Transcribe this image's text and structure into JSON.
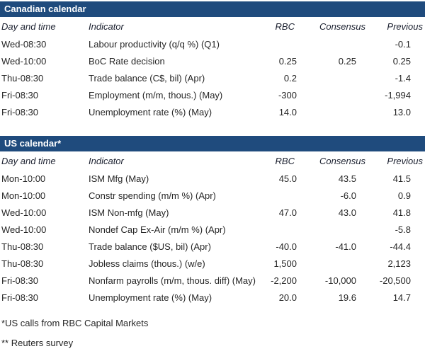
{
  "colors": {
    "section_bar_bg": "#1f4b7d",
    "section_bar_text": "#ffffff",
    "body_text": "#262626"
  },
  "columns": {
    "day_time": "Day and time",
    "indicator": "Indicator",
    "rbc": "RBC",
    "consensus": "Consensus",
    "previous": "Previous"
  },
  "sections": [
    {
      "title": "Canadian calendar",
      "rows": [
        {
          "time": "Wed-08:30",
          "indicator": "Labour productivity (q/q %) (Q1)",
          "rbc": "",
          "consensus": "",
          "previous": "-0.1"
        },
        {
          "time": "Wed-10:00",
          "indicator": "BoC Rate decision",
          "rbc": "0.25",
          "consensus": "0.25",
          "previous": "0.25"
        },
        {
          "time": "Thu-08:30",
          "indicator": "Trade balance (C$, bil) (Apr)",
          "rbc": "0.2",
          "consensus": "",
          "previous": "-1.4"
        },
        {
          "time": "Fri-08:30",
          "indicator": "Employment (m/m, thous.) (May)",
          "rbc": "-300",
          "consensus": "",
          "previous": "-1,994"
        },
        {
          "time": "Fri-08:30",
          "indicator": "Unemployment rate (%) (May)",
          "rbc": "14.0",
          "consensus": "",
          "previous": "13.0"
        }
      ]
    },
    {
      "title": "US calendar*",
      "rows": [
        {
          "time": "Mon-10:00",
          "indicator": "ISM Mfg (May)",
          "rbc": "45.0",
          "consensus": "43.5",
          "previous": "41.5"
        },
        {
          "time": "Mon-10:00",
          "indicator": "Constr spending (m/m %) (Apr)",
          "rbc": "",
          "consensus": "-6.0",
          "previous": "0.9"
        },
        {
          "time": "Wed-10:00",
          "indicator": "ISM Non-mfg (May)",
          "rbc": "47.0",
          "consensus": "43.0",
          "previous": "41.8"
        },
        {
          "time": "Wed-10:00",
          "indicator": "Nondef Cap Ex-Air (m/m %) (Apr)",
          "rbc": "",
          "consensus": "",
          "previous": "-5.8"
        },
        {
          "time": "Thu-08:30",
          "indicator": "Trade balance ($US, bil) (Apr)",
          "rbc": "-40.0",
          "consensus": "-41.0",
          "previous": "-44.4"
        },
        {
          "time": "Thu-08:30",
          "indicator": "Jobless claims (thous.) (w/e)",
          "rbc": "1,500",
          "consensus": "",
          "previous": "2,123"
        },
        {
          "time": "Fri-08:30",
          "indicator": "Nonfarm payrolls (m/m, thous. diff) (May)",
          "rbc": "-2,200",
          "consensus": "-10,000",
          "previous": "-20,500"
        },
        {
          "time": "Fri-08:30",
          "indicator": "Unemployment rate (%) (May)",
          "rbc": "20.0",
          "consensus": "19.6",
          "previous": "14.7"
        }
      ]
    }
  ],
  "footnotes": {
    "line1": "*US calls from RBC Capital Markets",
    "line2": "** Reuters survey"
  }
}
